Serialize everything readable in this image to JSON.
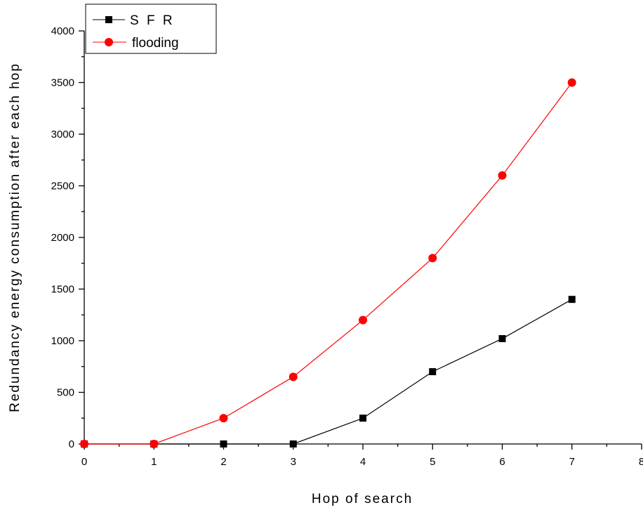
{
  "chart_data": {
    "type": "line",
    "title": "",
    "xlabel": "Hop of search",
    "ylabel": "Redundancy energy consumption after each hop",
    "xlim": [
      0,
      8
    ],
    "ylim": [
      0,
      4000
    ],
    "xticks": [
      0,
      1,
      2,
      3,
      4,
      5,
      6,
      7,
      8
    ],
    "yticks": [
      0,
      500,
      1000,
      1500,
      2000,
      2500,
      3000,
      3500,
      4000
    ],
    "grid": false,
    "legend_position": "top-left",
    "series": [
      {
        "name": "S F R",
        "color": "#000000",
        "marker": "square",
        "x": [
          0,
          1,
          2,
          3,
          4,
          5,
          6,
          7
        ],
        "y": [
          0,
          0,
          0,
          0,
          250,
          700,
          1020,
          1400
        ]
      },
      {
        "name": "flooding",
        "color": "#ff0000",
        "marker": "circle",
        "x": [
          0,
          1,
          2,
          3,
          4,
          5,
          6,
          7
        ],
        "y": [
          0,
          0,
          250,
          650,
          1200,
          1800,
          2600,
          3500
        ]
      }
    ]
  }
}
